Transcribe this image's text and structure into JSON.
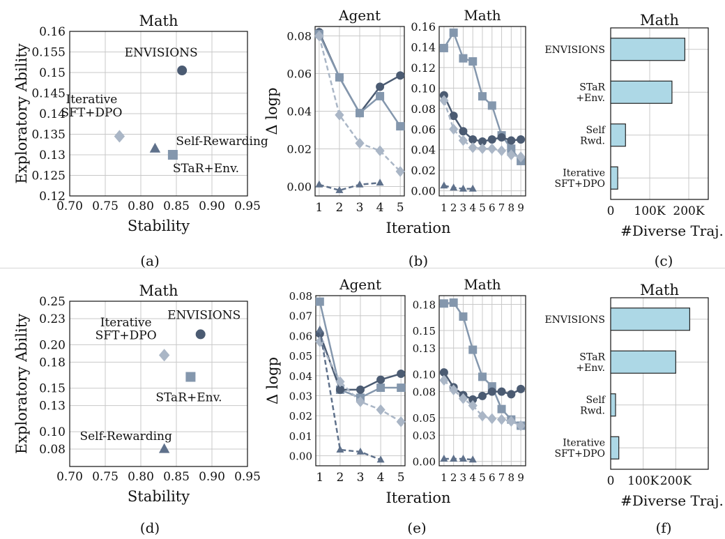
{
  "captions": [
    "(a)",
    "(b)",
    "(c)",
    "(d)",
    "(e)",
    "(f)"
  ],
  "colors": {
    "envisions": "#4b5b72",
    "star_env": "#8497ad",
    "iterative": "#aab6c6",
    "self_rewarding": "#5f718b",
    "bar_fill": "#add8e6",
    "bar_edge": "#222222",
    "grid": "#c8c8c8"
  },
  "chart_data": [
    {
      "id": "a",
      "type": "scatter",
      "title": "Math",
      "xlabel": "Stability",
      "ylabel": "Exploratory Ability",
      "xlim": [
        0.7,
        0.95
      ],
      "ylim": [
        0.12,
        0.16
      ],
      "xticks": [
        "0.70",
        "0.75",
        "0.80",
        "0.85",
        "0.90",
        "0.95"
      ],
      "yticks": [
        "0.12",
        "0.125",
        "0.13",
        "0.135",
        "0.14",
        "0.145",
        "0.15",
        "0.155",
        "0.16"
      ],
      "grid": true,
      "points": [
        {
          "label": "ENVISIONS",
          "x": 0.858,
          "y": 0.1505,
          "marker": "circle",
          "color_key": "envisions"
        },
        {
          "label": "Iterative\nSFT+DPO",
          "x": 0.77,
          "y": 0.1345,
          "marker": "diamond",
          "color_key": "iterative"
        },
        {
          "label": "Self-Rewarding",
          "x": 0.82,
          "y": 0.1315,
          "marker": "triangle",
          "color_key": "self_rewarding"
        },
        {
          "label": "STaR+Env.",
          "x": 0.845,
          "y": 0.13,
          "marker": "square",
          "color_key": "star_env"
        }
      ]
    },
    {
      "id": "b1",
      "type": "line",
      "title": "Agent",
      "ylabel": "Δ logp",
      "xlabel": "",
      "xlim": [
        0.8,
        5.2
      ],
      "ylim": [
        -0.005,
        0.085
      ],
      "xticks": [
        "1",
        "2",
        "3",
        "4",
        "5"
      ],
      "yticks": [
        "0.00",
        "0.02",
        "0.04",
        "0.06",
        "0.08"
      ],
      "grid": true,
      "series": [
        {
          "marker": "circle",
          "color_key": "envisions",
          "dashed": false,
          "x": [
            1,
            2,
            3,
            4,
            5
          ],
          "y": [
            0.082,
            0.058,
            0.039,
            0.053,
            0.059
          ]
        },
        {
          "marker": "square",
          "color_key": "star_env",
          "dashed": false,
          "x": [
            1,
            2,
            3,
            4,
            5
          ],
          "y": [
            0.081,
            0.058,
            0.039,
            0.048,
            0.032
          ]
        },
        {
          "marker": "diamond",
          "color_key": "iterative",
          "dashed": true,
          "x": [
            1,
            2,
            3,
            4,
            5
          ],
          "y": [
            0.08,
            0.038,
            0.023,
            0.019,
            0.008
          ]
        },
        {
          "marker": "triangle",
          "color_key": "self_rewarding",
          "dashed": true,
          "x": [
            1,
            2,
            3,
            4
          ],
          "y": [
            0.001,
            -0.002,
            0.001,
            0.002
          ]
        }
      ]
    },
    {
      "id": "b2",
      "type": "line",
      "title": "Math",
      "xlabel": "",
      "xlim": [
        0.5,
        9.5
      ],
      "ylim": [
        -0.005,
        0.16
      ],
      "xticks": [
        "1",
        "2",
        "3",
        "4",
        "5",
        "6",
        "7",
        "8",
        "9"
      ],
      "yticks": [
        "0.00",
        "0.02",
        "0.04",
        "0.06",
        "0.08",
        "0.10",
        "0.12",
        "0.14",
        "0.16"
      ],
      "grid": true,
      "series": [
        {
          "marker": "square",
          "color_key": "star_env",
          "dashed": false,
          "x": [
            1,
            2,
            3,
            4,
            5,
            6,
            7,
            8,
            9
          ],
          "y": [
            0.139,
            0.154,
            0.129,
            0.126,
            0.092,
            0.083,
            0.054,
            0.041,
            0.029
          ]
        },
        {
          "marker": "circle",
          "color_key": "envisions",
          "dashed": false,
          "x": [
            1,
            2,
            3,
            4,
            5,
            6,
            7,
            8,
            9
          ],
          "y": [
            0.093,
            0.073,
            0.058,
            0.05,
            0.048,
            0.05,
            0.052,
            0.049,
            0.05
          ]
        },
        {
          "marker": "diamond",
          "color_key": "iterative",
          "dashed": true,
          "x": [
            1,
            2,
            3,
            4,
            5,
            6,
            7,
            8,
            9
          ],
          "y": [
            0.088,
            0.06,
            0.049,
            0.042,
            0.041,
            0.041,
            0.039,
            0.035,
            0.033
          ]
        },
        {
          "marker": "triangle",
          "color_key": "self_rewarding",
          "dashed": true,
          "x": [
            1,
            2,
            3,
            4
          ],
          "y": [
            0.005,
            0.003,
            0.002,
            0.002
          ]
        }
      ]
    },
    {
      "id": "b_xlabel",
      "type": "label",
      "text": "Iteration"
    },
    {
      "id": "c",
      "type": "bar",
      "orientation": "horizontal",
      "title": "Math",
      "xlabel": "#Diverse Traj.",
      "categories": [
        "ENVISIONS",
        "STaR\n+Env.",
        "Self\nRwd.",
        "Iterative\nSFT+DPO"
      ],
      "values": [
        190000,
        157000,
        38000,
        18000
      ],
      "xlim": [
        0,
        250000
      ],
      "xticks": [
        "0",
        "100K",
        "200K"
      ],
      "grid": true
    },
    {
      "id": "d",
      "type": "scatter",
      "title": "Math",
      "xlabel": "Stability",
      "ylabel": "Exploratory Ability",
      "xlim": [
        0.7,
        0.95
      ],
      "ylim": [
        0.06,
        0.25
      ],
      "xticks": [
        "0.70",
        "0.75",
        "0.80",
        "0.85",
        "0.90",
        "0.95"
      ],
      "yticks": [
        "0.08",
        "0.10",
        "0.13",
        "0.15",
        "0.18",
        "0.20",
        "0.23",
        "0.25"
      ],
      "grid": true,
      "points": [
        {
          "label": "ENVISIONS",
          "x": 0.884,
          "y": 0.212,
          "marker": "circle",
          "color_key": "envisions"
        },
        {
          "label": "Iterative\nSFT+DPO",
          "x": 0.833,
          "y": 0.188,
          "marker": "diamond",
          "color_key": "iterative"
        },
        {
          "label": "STaR+Env.",
          "x": 0.87,
          "y": 0.163,
          "marker": "square",
          "color_key": "star_env"
        },
        {
          "label": "Self-Rewarding",
          "x": 0.833,
          "y": 0.08,
          "marker": "triangle",
          "color_key": "self_rewarding"
        }
      ]
    },
    {
      "id": "e1",
      "type": "line",
      "title": "Agent",
      "ylabel": "Δ logp",
      "xlabel": "",
      "xlim": [
        0.8,
        5.2
      ],
      "ylim": [
        -0.005,
        0.08
      ],
      "xticks": [
        "1",
        "2",
        "3",
        "4",
        "5"
      ],
      "yticks": [
        "0.00",
        "0.01",
        "0.02",
        "0.03",
        "0.04",
        "0.05",
        "0.06",
        "0.07",
        "0.08"
      ],
      "grid": true,
      "series": [
        {
          "marker": "square",
          "color_key": "star_env",
          "dashed": false,
          "x": [
            1,
            2,
            3,
            4,
            5
          ],
          "y": [
            0.077,
            0.033,
            0.029,
            0.034,
            0.034
          ]
        },
        {
          "marker": "circle",
          "color_key": "envisions",
          "dashed": false,
          "x": [
            1,
            2,
            3,
            4,
            5
          ],
          "y": [
            0.061,
            0.033,
            0.033,
            0.038,
            0.041
          ]
        },
        {
          "marker": "diamond",
          "color_key": "iterative",
          "dashed": true,
          "x": [
            1,
            2,
            3,
            4,
            5
          ],
          "y": [
            0.057,
            0.037,
            0.027,
            0.023,
            0.017
          ]
        },
        {
          "marker": "triangle",
          "color_key": "self_rewarding",
          "dashed": true,
          "x": [
            1,
            2,
            3,
            4
          ],
          "y": [
            0.063,
            0.003,
            0.002,
            -0.002
          ]
        }
      ]
    },
    {
      "id": "e2",
      "type": "line",
      "title": "Math",
      "xlabel": "",
      "xlim": [
        0.5,
        9.5
      ],
      "ylim": [
        -0.005,
        0.19
      ],
      "xticks": [
        "1",
        "2",
        "3",
        "4",
        "5",
        "6",
        "7",
        "8",
        "9"
      ],
      "yticks": [
        "0.00",
        "0.03",
        "0.05",
        "0.08",
        "0.10",
        "0.13",
        "0.15",
        "0.18"
      ],
      "grid": true,
      "series": [
        {
          "marker": "square",
          "color_key": "star_env",
          "dashed": false,
          "x": [
            1,
            2,
            3,
            4,
            5,
            6,
            7,
            8,
            9
          ],
          "y": [
            0.181,
            0.182,
            0.166,
            0.128,
            0.097,
            0.086,
            0.06,
            0.048,
            0.041
          ]
        },
        {
          "marker": "circle",
          "color_key": "envisions",
          "dashed": false,
          "x": [
            1,
            2,
            3,
            4,
            5,
            6,
            7,
            8,
            9
          ],
          "y": [
            0.102,
            0.085,
            0.076,
            0.071,
            0.075,
            0.08,
            0.08,
            0.077,
            0.083
          ]
        },
        {
          "marker": "diamond",
          "color_key": "iterative",
          "dashed": true,
          "x": [
            1,
            2,
            3,
            4,
            5,
            6,
            7,
            8,
            9
          ],
          "y": [
            0.093,
            0.082,
            0.072,
            0.064,
            0.052,
            0.049,
            0.048,
            0.046,
            0.041
          ]
        },
        {
          "marker": "triangle",
          "color_key": "self_rewarding",
          "dashed": true,
          "x": [
            1,
            2,
            3,
            4
          ],
          "y": [
            0.003,
            0.003,
            0.003,
            0.002
          ]
        }
      ]
    },
    {
      "id": "e_xlabel",
      "type": "label",
      "text": "Iteration"
    },
    {
      "id": "f",
      "type": "bar",
      "orientation": "horizontal",
      "title": "Math",
      "xlabel": "#Diverse Traj.",
      "categories": [
        "ENVISIONS",
        "STaR\n+Env.",
        "Self\nRwd.",
        "Iterative\nSFT+DPO"
      ],
      "values": [
        243000,
        200000,
        15000,
        25000
      ],
      "xlim": [
        0,
        300000
      ],
      "xticks": [
        "0",
        "100K",
        "200K"
      ],
      "grid": true
    }
  ]
}
